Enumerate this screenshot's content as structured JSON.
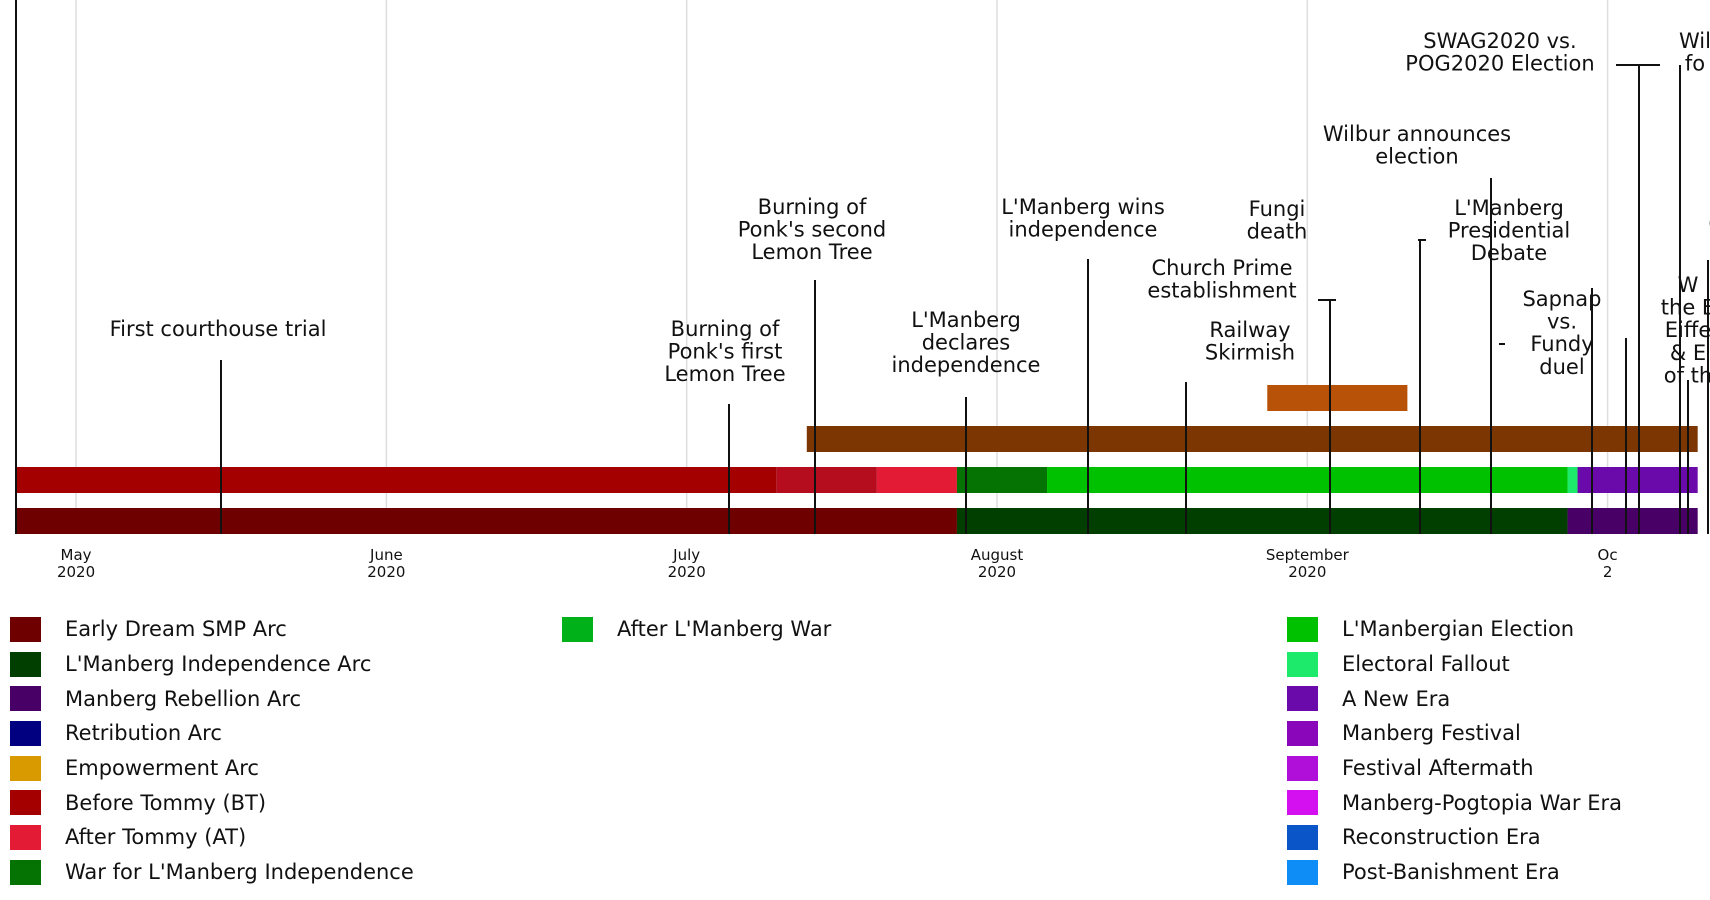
{
  "bars": [
    {
      "row": "era",
      "start": "2020-04-25",
      "end": "2020-07-10",
      "color": "#a40000"
    },
    {
      "row": "era",
      "start": "2020-07-10",
      "end": "2020-07-20",
      "color": "#b50d1d"
    },
    {
      "row": "era",
      "start": "2020-07-20",
      "end": "2020-07-28",
      "color": "#e31b35"
    },
    {
      "row": "era",
      "start": "2020-07-28",
      "end": "2020-08-06",
      "color": "#047304"
    },
    {
      "row": "era",
      "start": "2020-08-06",
      "end": "2020-09-27",
      "color": "#00c100"
    },
    {
      "row": "era",
      "start": "2020-09-27",
      "end": "2020-09-28",
      "color": "#1de96b"
    },
    {
      "row": "era",
      "start": "2020-09-28",
      "end": "2020-10-10",
      "color": "#6a0aaa"
    },
    {
      "row": "arc",
      "start": "2020-04-25",
      "end": "2020-07-28",
      "color": "#6e0000"
    },
    {
      "row": "arc",
      "start": "2020-07-28",
      "end": "2020-09-27",
      "color": "#003f00"
    },
    {
      "row": "arc",
      "start": "2020-09-27",
      "end": "2020-10-10",
      "color": "#480066"
    },
    {
      "row": "war",
      "start": "2020-07-13",
      "end": "2020-10-10",
      "color": "#7b3602"
    },
    {
      "row": "election",
      "start": "2020-08-28",
      "end": "2020-09-11",
      "color": "#b85208"
    }
  ],
  "axis_ticks": [
    {
      "month": "May",
      "year": "2020",
      "date": "2020-05-01"
    },
    {
      "month": "June",
      "year": "2020",
      "date": "2020-06-01"
    },
    {
      "month": "July",
      "year": "2020",
      "date": "2020-07-01"
    },
    {
      "month": "August",
      "year": "2020",
      "date": "2020-08-01"
    },
    {
      "month": "September",
      "year": "2020",
      "date": "2020-09-01"
    },
    {
      "month": "Oc",
      "year": "2",
      "date": "2020-10-01"
    }
  ],
  "events": [
    {
      "date": "2020-05-15",
      "lines": [
        "First courthouse trial"
      ],
      "top": 2
    },
    {
      "date": "2020-07-01",
      "lines": [
        "Burning of",
        "Ponk's first",
        "Lemon Tree"
      ],
      "top": 1
    },
    {
      "date": "2020-07-09",
      "lines": [
        "Burning of",
        "Ponk's second",
        "Lemon Tree"
      ],
      "top": 0
    },
    {
      "date": "2020-08-01",
      "lines": [
        "L'Manberg",
        "declares",
        "independence"
      ],
      "top": 1
    },
    {
      "date": "2020-08-05",
      "lines": [
        "L'Manberg wins",
        "independence"
      ],
      "top": 0
    },
    {
      "date": "2020-08-25",
      "lines": [
        "Railway",
        "Skirmish"
      ],
      "top": 2
    },
    {
      "date": "2020-08-27",
      "lines": [
        "Church Prime",
        "establishment"
      ],
      "top": 0
    },
    {
      "date": "2020-08-28",
      "lines": [
        "Fungi",
        "death"
      ],
      "top": 0
    },
    {
      "date": "2020-09-02",
      "lines": [
        "Wilbur announces",
        "election"
      ],
      "top": 0
    },
    {
      "date": "2020-09-10",
      "lines": [
        "L'Manberg",
        "Presidential",
        "Debate"
      ],
      "top": 0
    },
    {
      "date": "2020-09-11",
      "lines": [
        "Sapnap",
        "vs.",
        "Fundy",
        "duel"
      ],
      "top": 1
    },
    {
      "date": "2020-09-26",
      "lines": [
        "SWAG2020 vs.",
        "POG2020 Election"
      ],
      "top": 0
    },
    {
      "date": "2020-09-26",
      "lines": [
        "Wil",
        "fo"
      ],
      "top": 0
    },
    {
      "date": "2020-09-26",
      "lines": [
        "W",
        "the E",
        "Eiffe",
        "& E",
        "of th"
      ],
      "top": 2
    },
    {
      "date": "2020-09-26",
      "lines": [
        "("
      ],
      "top": 0
    }
  ],
  "legend": {
    "col1": [
      {
        "label": "Early Dream SMP Arc",
        "color": "#6e0000"
      },
      {
        "label": "L'Manberg Independence Arc",
        "color": "#003f00"
      },
      {
        "label": "Manberg Rebellion Arc",
        "color": "#480066"
      },
      {
        "label": "Retribution Arc",
        "color": "#000080"
      },
      {
        "label": "Empowerment Arc",
        "color": "#d99a00"
      },
      {
        "label": "Before Tommy (BT)",
        "color": "#a40000"
      },
      {
        "label": "After Tommy (AT)",
        "color": "#e31b35"
      },
      {
        "label": "War for L'Manberg Independence",
        "color": "#047304"
      }
    ],
    "col2": [
      {
        "label": "After L'Manberg War",
        "color": "#00b11a"
      }
    ],
    "col3": [
      {
        "label": "L'Manbergian Election",
        "color": "#00c100"
      },
      {
        "label": "Electoral Fallout",
        "color": "#1de96b"
      },
      {
        "label": "A New Era",
        "color": "#6a0aaa"
      },
      {
        "label": "Manberg Festival",
        "color": "#8a06bb"
      },
      {
        "label": "Festival Aftermath",
        "color": "#b00fd9"
      },
      {
        "label": "Manberg-Pogtopia War Era",
        "color": "#d40ff0"
      },
      {
        "label": "Reconstruction Era",
        "color": "#0a55c8"
      },
      {
        "label": "Post-Banishment Era",
        "color": "#0d8df5"
      }
    ]
  }
}
